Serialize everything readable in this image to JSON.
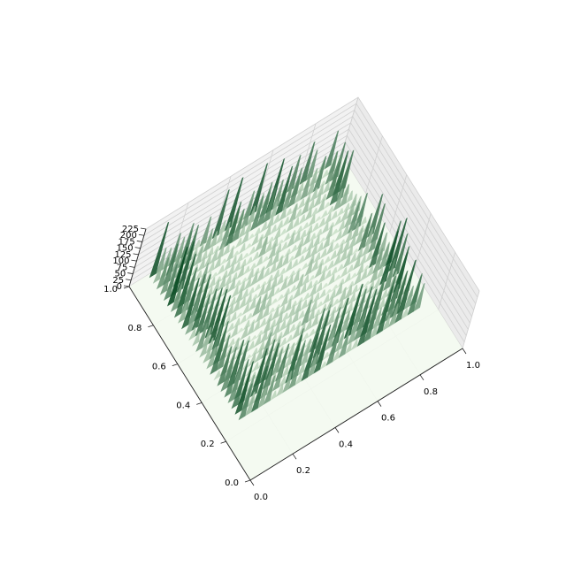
{
  "chart_data": {
    "type": "surface3d",
    "colormap": "Greens",
    "colors": {
      "pane": "#f2f2f2",
      "grid": "#d0d0d0",
      "floor": "#f3faf0",
      "low": "#e5f5e0",
      "high": "#00441b"
    },
    "title": "",
    "xlabel": "",
    "ylabel": "",
    "zlabel": "",
    "xlim": [
      0.0,
      1.0
    ],
    "ylim": [
      0.0,
      1.0
    ],
    "zlim": [
      0,
      225
    ],
    "xticks": [
      "0.0",
      "0.2",
      "0.4",
      "0.6",
      "0.8",
      "1.0"
    ],
    "yticks": [
      "0.0",
      "0.2",
      "0.4",
      "0.6",
      "0.8",
      "1.0"
    ],
    "zticks": [
      "0",
      "25",
      "50",
      "75",
      "100",
      "125",
      "150",
      "175",
      "200",
      "225"
    ],
    "grid": true,
    "surface": {
      "description": "square plateau of noisy green spikes covering roughly x 0.1–0.95, y 0.25–1.0; surface is flat (z=0) elsewhere",
      "active_x_range": [
        0.1,
        0.95
      ],
      "active_y_range": [
        0.25,
        1.0
      ],
      "base_level": 40,
      "edge_spike_max": 225
    }
  }
}
